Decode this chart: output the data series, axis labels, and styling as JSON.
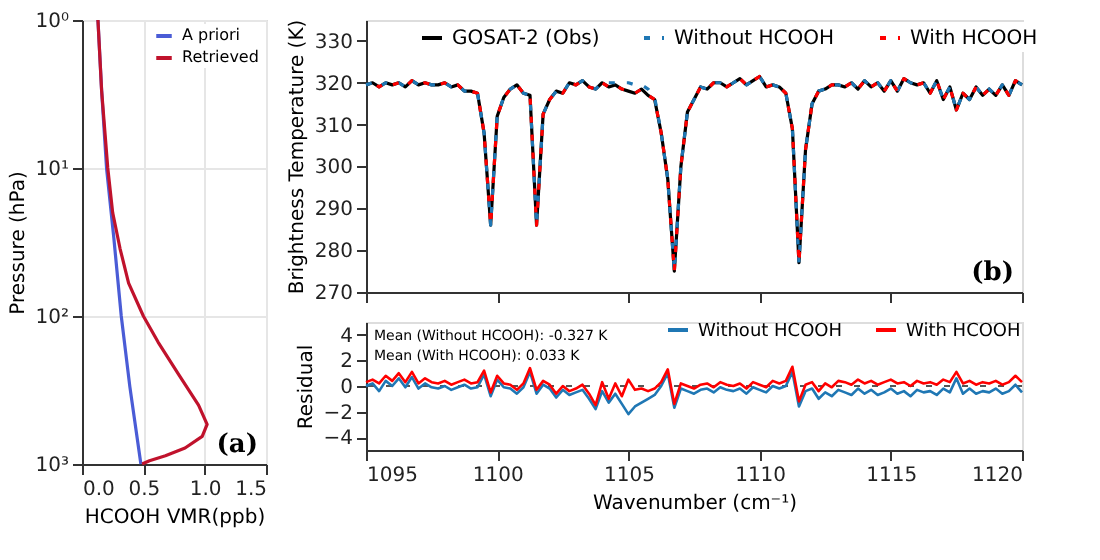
{
  "chart_data": [
    {
      "type": "line",
      "xlabel": "HCOOH VMR(ppb)",
      "ylabel": "Pressure (hPa)",
      "log": "y",
      "grid": true,
      "legend": "top right",
      "xlim": [
        0,
        1.5
      ],
      "xticks": [
        {
          "value": 0,
          "label": "0.0"
        },
        0.5,
        {
          "value": 1,
          "label": "1.0"
        },
        1.5
      ],
      "ylim": [
        1000,
        1
      ],
      "yticks": [
        {
          "value": 1,
          "label": "10⁰"
        },
        {
          "value": 10,
          "label": "10¹"
        },
        {
          "value": 100,
          "label": "10²"
        },
        {
          "value": 1000,
          "label": "10³"
        }
      ],
      "annotations": [
        "(a)"
      ],
      "series": [
        {
          "name": "A priori",
          "color": "#4a5cd6",
          "line_style": "solid",
          "x": [
            0.13,
            0.16,
            0.2,
            0.26,
            0.32,
            0.39,
            0.48
          ],
          "values": [
            1,
            3,
            10,
            30,
            100,
            300,
            1000
          ]
        },
        {
          "name": "Retrieved",
          "color": "#c0122c",
          "line_style": "solid",
          "x": [
            0.13,
            0.16,
            0.21,
            0.25,
            0.31,
            0.38,
            0.5,
            0.62,
            0.79,
            0.95,
            1.02,
            0.98,
            0.84,
            0.68,
            0.55,
            0.49
          ],
          "values": [
            1,
            3,
            10,
            20,
            35,
            60,
            100,
            150,
            250,
            400,
            540,
            650,
            780,
            880,
            950,
            1000
          ]
        }
      ]
    },
    {
      "type": "line",
      "ylabel": "Brightness Temperature (K)",
      "legend": "top",
      "tick_labels": "y",
      "xlim": [
        1095,
        1120
      ],
      "xticks": [
        1095,
        1100,
        1105,
        1110,
        1115,
        1120
      ],
      "ylim": [
        270,
        335
      ],
      "yticks": [
        270,
        280,
        290,
        300,
        310,
        320,
        330
      ],
      "annotations": [
        "(b)"
      ],
      "x": [
        1095,
        1095.25,
        1095.5,
        1095.75,
        1096,
        1096.25,
        1096.5,
        1096.75,
        1097,
        1097.25,
        1097.5,
        1097.75,
        1098,
        1098.25,
        1098.5,
        1098.75,
        1099,
        1099.25,
        1099.5,
        1099.75,
        1100,
        1100.25,
        1100.5,
        1100.75,
        1101,
        1101.25,
        1101.5,
        1101.75,
        1102,
        1102.25,
        1102.5,
        1102.75,
        1103,
        1103.25,
        1103.5,
        1103.75,
        1104,
        1104.25,
        1104.5,
        1104.75,
        1105,
        1105.25,
        1105.5,
        1105.75,
        1106,
        1106.25,
        1106.5,
        1106.75,
        1107,
        1107.25,
        1107.5,
        1107.75,
        1108,
        1108.25,
        1108.5,
        1108.75,
        1109,
        1109.25,
        1109.5,
        1109.75,
        1110,
        1110.25,
        1110.5,
        1110.75,
        1111,
        1111.25,
        1111.5,
        1111.75,
        1112,
        1112.25,
        1112.5,
        1112.75,
        1113,
        1113.25,
        1113.5,
        1113.75,
        1114,
        1114.25,
        1114.5,
        1114.75,
        1115,
        1115.25,
        1115.5,
        1115.75,
        1116,
        1116.25,
        1116.5,
        1116.75,
        1117,
        1117.25,
        1117.5,
        1117.75,
        1118,
        1118.25,
        1118.5,
        1118.75,
        1119,
        1119.25,
        1119.5,
        1119.75,
        1120
      ],
      "series": [
        {
          "name": "GOSAT-2 (Obs)",
          "color": "#000000",
          "line_style": "solid",
          "values": [
            319.5,
            320,
            319,
            320,
            319.5,
            320,
            319,
            320.5,
            319.5,
            320,
            319.5,
            319.5,
            320,
            319,
            319.5,
            318,
            318,
            317.5,
            308,
            286,
            312,
            316.5,
            318.5,
            319.5,
            317.5,
            317,
            286,
            312.5,
            316,
            318,
            317.5,
            320,
            319.5,
            320.5,
            319,
            318.5,
            320,
            319,
            319.5,
            318.5,
            318,
            317.5,
            318.5,
            317,
            316,
            308,
            297,
            275,
            300,
            313,
            316,
            319,
            318.5,
            320,
            320,
            319,
            320,
            321,
            319.5,
            320.5,
            321.5,
            319,
            319.5,
            319,
            317.5,
            309,
            277,
            304,
            315,
            318,
            318.5,
            319.5,
            319.5,
            319,
            320,
            318.5,
            320.5,
            319,
            320,
            318,
            320.5,
            318,
            321,
            320,
            319.5,
            320,
            317.5,
            320.5,
            316,
            319,
            313.5,
            317.5,
            316,
            319,
            317,
            318.5,
            317,
            319.5,
            317,
            320.5,
            319.5
          ]
        },
        {
          "name": "Without HCOOH",
          "color": "#1f77b4",
          "line_style": "dashed",
          "values": [
            319.5,
            320,
            319,
            320,
            319.5,
            320,
            319,
            320.5,
            319.5,
            320,
            319.5,
            319.5,
            320,
            319,
            319.5,
            318,
            318,
            317.5,
            308,
            286,
            312,
            316.5,
            318.5,
            319.5,
            317.5,
            317,
            286,
            312.5,
            316,
            318,
            317.5,
            320,
            319.5,
            320.5,
            319,
            318.5,
            320,
            320,
            320,
            320,
            320,
            319.5,
            319.5,
            318.5,
            316.5,
            308,
            297,
            275,
            300,
            313,
            316,
            319,
            318.5,
            320,
            320,
            319,
            320,
            321,
            319.5,
            320.5,
            321.5,
            319,
            319.5,
            319,
            317.5,
            309,
            277,
            304,
            315,
            318,
            318.5,
            319.5,
            319.5,
            319,
            320,
            318.5,
            320.5,
            319,
            320,
            318,
            320.5,
            318,
            321,
            320,
            319.5,
            320,
            317.5,
            320.5,
            316,
            319,
            313.5,
            317.5,
            316,
            319,
            317,
            318.5,
            317,
            319.5,
            317,
            320.5,
            319.5
          ]
        },
        {
          "name": "With HCOOH",
          "color": "#ff0000",
          "line_style": "dashed",
          "values": [
            319.5,
            320,
            319,
            320,
            319.5,
            320,
            319,
            320.5,
            319.5,
            320,
            319.5,
            319.5,
            320,
            319,
            319.5,
            318,
            318,
            317.5,
            308,
            286,
            312,
            316.5,
            318.5,
            319.5,
            317.5,
            317,
            286,
            312.5,
            316,
            318,
            317.5,
            320,
            319.5,
            320.5,
            319,
            318.5,
            320,
            319,
            319.5,
            318.5,
            318,
            317.5,
            318.5,
            317,
            316,
            308,
            297,
            275,
            300,
            313,
            316,
            319,
            318.5,
            320,
            320,
            319,
            320,
            321,
            319.5,
            320.5,
            321.5,
            319,
            319.5,
            319,
            317.5,
            309,
            277,
            304,
            315,
            318,
            318.5,
            319.5,
            319.5,
            319,
            320,
            318.5,
            320.5,
            319,
            320,
            318,
            320.5,
            318,
            321,
            320,
            319.5,
            320,
            317.5,
            320.5,
            316,
            319,
            313.5,
            317.5,
            316,
            319,
            317,
            318.5,
            317,
            319.5,
            317,
            320.5,
            319.5
          ]
        }
      ]
    },
    {
      "type": "line",
      "xlabel": "Wavenumber (cm⁻¹)",
      "ylabel": "Residual",
      "legend": "top right",
      "xlim": [
        1095,
        1120
      ],
      "xticks": [
        1095,
        1100,
        1105,
        1110,
        1115,
        1120
      ],
      "ylim": [
        -5,
        5
      ],
      "yticks": [
        -4,
        -2,
        0,
        2,
        4
      ],
      "ref_lines": [
        {
          "axis": "y",
          "value": 0,
          "color": "#555555",
          "line_style": "dashed"
        }
      ],
      "annotations": [
        "Mean (Without HCOOH): -0.327 K",
        "Mean (With HCOOH):    0.033 K"
      ],
      "x": [
        1095,
        1095.25,
        1095.5,
        1095.75,
        1096,
        1096.25,
        1096.5,
        1096.75,
        1097,
        1097.25,
        1097.5,
        1097.75,
        1098,
        1098.25,
        1098.5,
        1098.75,
        1099,
        1099.25,
        1099.5,
        1099.75,
        1100,
        1100.25,
        1100.5,
        1100.75,
        1101,
        1101.25,
        1101.5,
        1101.75,
        1102,
        1102.25,
        1102.5,
        1102.75,
        1103,
        1103.25,
        1103.5,
        1103.75,
        1104,
        1104.25,
        1104.5,
        1104.75,
        1105,
        1105.25,
        1105.5,
        1105.75,
        1106,
        1106.25,
        1106.5,
        1106.75,
        1107,
        1107.25,
        1107.5,
        1107.75,
        1108,
        1108.25,
        1108.5,
        1108.75,
        1109,
        1109.25,
        1109.5,
        1109.75,
        1110,
        1110.25,
        1110.5,
        1110.75,
        1111,
        1111.25,
        1111.5,
        1111.75,
        1112,
        1112.25,
        1112.5,
        1112.75,
        1113,
        1113.25,
        1113.5,
        1113.75,
        1114,
        1114.25,
        1114.5,
        1114.75,
        1115,
        1115.25,
        1115.5,
        1115.75,
        1116,
        1116.25,
        1116.5,
        1116.75,
        1117,
        1117.25,
        1117.5,
        1117.75,
        1118,
        1118.25,
        1118.5,
        1118.75,
        1119,
        1119.25,
        1119.5,
        1119.75,
        1120
      ],
      "series": [
        {
          "name": "Without HCOOH",
          "color": "#1f77b4",
          "line_style": "solid",
          "values": [
            0.0,
            0.2,
            -0.4,
            0.4,
            0.0,
            0.6,
            -0.1,
            0.7,
            -0.2,
            0.2,
            -0.1,
            -0.2,
            0.0,
            -0.3,
            -0.1,
            0.1,
            -0.2,
            -0.1,
            0.9,
            -0.8,
            0.5,
            -0.1,
            -0.2,
            -0.6,
            -0.1,
            1.1,
            -0.6,
            0.1,
            -0.2,
            -0.9,
            -0.3,
            -0.7,
            -0.5,
            -0.3,
            -1.0,
            -1.8,
            -0.4,
            -1.3,
            -0.6,
            -1.4,
            -2.2,
            -1.6,
            -1.3,
            -1.0,
            -0.7,
            0.0,
            1.0,
            -1.7,
            -0.2,
            -0.4,
            -0.6,
            -0.3,
            -0.2,
            -0.5,
            -0.1,
            -0.3,
            -0.4,
            -0.2,
            -0.6,
            -0.1,
            -0.3,
            -0.5,
            0.0,
            -0.2,
            0.0,
            1.1,
            -1.6,
            -0.4,
            -0.2,
            -1.0,
            -0.5,
            -0.8,
            -0.3,
            -0.5,
            -0.7,
            -0.2,
            -0.6,
            -0.3,
            -0.7,
            -0.5,
            -0.2,
            -0.6,
            -0.4,
            -0.8,
            -0.3,
            -0.5,
            -0.4,
            -0.7,
            -0.2,
            -0.5,
            0.6,
            -0.6,
            -0.2,
            -0.6,
            -0.4,
            -0.5,
            -0.2,
            -0.6,
            -0.4,
            0.1,
            -0.5
          ]
        },
        {
          "name": "With HCOOH",
          "color": "#ff0000",
          "line_style": "solid",
          "values": [
            0.3,
            0.5,
            0.2,
            0.8,
            0.4,
            1.0,
            0.3,
            1.1,
            0.2,
            0.6,
            0.3,
            0.2,
            0.4,
            0.1,
            0.3,
            0.5,
            0.2,
            0.3,
            1.2,
            -0.5,
            0.8,
            0.2,
            0.1,
            -0.3,
            0.2,
            1.4,
            -0.3,
            0.4,
            0.1,
            -0.6,
            0.0,
            -0.4,
            -0.2,
            0.1,
            -0.6,
            -1.5,
            0.3,
            -1.0,
            0.2,
            -0.8,
            0.5,
            -0.3,
            -0.2,
            -0.4,
            -0.2,
            0.3,
            1.3,
            -1.4,
            0.2,
            0.0,
            -0.2,
            0.1,
            0.2,
            -0.1,
            0.3,
            0.1,
            0.0,
            0.2,
            -0.2,
            0.3,
            0.1,
            -0.1,
            0.4,
            0.2,
            0.4,
            1.5,
            -1.2,
            0.1,
            0.3,
            -0.4,
            0.2,
            -0.1,
            0.4,
            0.3,
            0.1,
            0.5,
            0.2,
            0.4,
            0.1,
            0.3,
            0.5,
            0.2,
            0.3,
            0.0,
            0.4,
            0.2,
            0.3,
            0.1,
            0.5,
            0.3,
            1.1,
            0.2,
            0.4,
            0.1,
            0.3,
            0.2,
            0.4,
            0.1,
            0.3,
            0.8,
            0.3
          ]
        }
      ]
    }
  ]
}
